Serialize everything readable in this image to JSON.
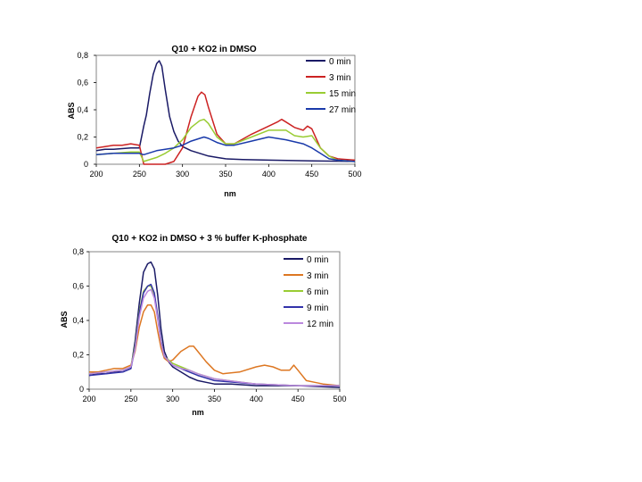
{
  "chart_data": [
    {
      "type": "line",
      "title": "Q10 + KO2 in DMSO",
      "xlabel": "nm",
      "ylabel": "ABS",
      "xlim": [
        200,
        500
      ],
      "ylim": [
        0,
        0.8
      ],
      "xticks": [
        "200",
        "250",
        "300",
        "350",
        "400",
        "450",
        "500"
      ],
      "yticks": [
        "0",
        "0,2",
        "0,4",
        "0,6",
        "0,8"
      ],
      "legend_position": "top-right",
      "series": [
        {
          "name": "0 min",
          "color": "#1a1a66",
          "x": [
            200,
            210,
            220,
            230,
            240,
            250,
            255,
            258,
            262,
            266,
            270,
            273,
            276,
            280,
            285,
            290,
            295,
            300,
            310,
            320,
            330,
            340,
            350,
            370,
            400,
            450,
            500
          ],
          "y": [
            0.1,
            0.11,
            0.11,
            0.115,
            0.12,
            0.12,
            0.28,
            0.36,
            0.52,
            0.66,
            0.74,
            0.76,
            0.72,
            0.55,
            0.35,
            0.24,
            0.17,
            0.13,
            0.1,
            0.08,
            0.06,
            0.05,
            0.04,
            0.035,
            0.03,
            0.025,
            0.02
          ]
        },
        {
          "name": "3 min",
          "color": "#cc2222",
          "x": [
            200,
            210,
            220,
            230,
            240,
            250,
            255,
            262,
            270,
            280,
            290,
            300,
            310,
            318,
            322,
            326,
            330,
            340,
            350,
            360,
            380,
            400,
            410,
            415,
            420,
            430,
            440,
            445,
            450,
            460,
            470,
            480,
            500
          ],
          "y": [
            0.12,
            0.13,
            0.14,
            0.14,
            0.15,
            0.14,
            0.0,
            0.0,
            0.0,
            0.0,
            0.02,
            0.12,
            0.35,
            0.5,
            0.53,
            0.51,
            0.42,
            0.22,
            0.15,
            0.15,
            0.22,
            0.28,
            0.31,
            0.33,
            0.31,
            0.27,
            0.25,
            0.28,
            0.26,
            0.12,
            0.06,
            0.04,
            0.03
          ]
        },
        {
          "name": "15 min",
          "color": "#99cc33",
          "x": [
            200,
            220,
            240,
            250,
            255,
            260,
            270,
            280,
            290,
            300,
            310,
            320,
            325,
            330,
            340,
            350,
            360,
            380,
            400,
            420,
            430,
            440,
            450,
            460,
            470,
            480,
            500
          ],
          "y": [
            0.07,
            0.08,
            0.09,
            0.09,
            0.02,
            0.03,
            0.05,
            0.08,
            0.12,
            0.18,
            0.27,
            0.32,
            0.33,
            0.3,
            0.2,
            0.15,
            0.15,
            0.2,
            0.25,
            0.25,
            0.21,
            0.2,
            0.21,
            0.12,
            0.06,
            0.03,
            0.02
          ]
        },
        {
          "name": "27 min",
          "color": "#1a3aaa",
          "x": [
            200,
            220,
            240,
            250,
            255,
            260,
            270,
            280,
            290,
            300,
            310,
            320,
            325,
            330,
            340,
            350,
            360,
            380,
            400,
            420,
            440,
            450,
            460,
            470,
            480,
            500
          ],
          "y": [
            0.07,
            0.08,
            0.08,
            0.08,
            0.07,
            0.08,
            0.1,
            0.11,
            0.12,
            0.14,
            0.17,
            0.19,
            0.2,
            0.19,
            0.16,
            0.14,
            0.14,
            0.17,
            0.2,
            0.18,
            0.15,
            0.12,
            0.08,
            0.04,
            0.03,
            0.02
          ]
        }
      ]
    },
    {
      "type": "line",
      "title": "Q10 + KO2 in DMSO + 3 % buffer K-phosphate",
      "xlabel": "nm",
      "ylabel": "ABS",
      "xlim": [
        200,
        500
      ],
      "ylim": [
        0,
        0.8
      ],
      "xticks": [
        "200",
        "250",
        "300",
        "350",
        "400",
        "450",
        "500"
      ],
      "yticks": [
        "0",
        "0,2",
        "0,4",
        "0,6",
        "0,8"
      ],
      "legend_position": "top-right",
      "series": [
        {
          "name": "0 min",
          "color": "#1a1a66",
          "x": [
            200,
            210,
            220,
            230,
            240,
            250,
            255,
            260,
            265,
            270,
            274,
            278,
            282,
            286,
            290,
            295,
            300,
            310,
            320,
            330,
            340,
            350,
            370,
            400,
            450,
            500
          ],
          "y": [
            0.08,
            0.09,
            0.09,
            0.1,
            0.1,
            0.12,
            0.28,
            0.5,
            0.68,
            0.73,
            0.74,
            0.7,
            0.55,
            0.35,
            0.22,
            0.16,
            0.13,
            0.1,
            0.07,
            0.05,
            0.04,
            0.03,
            0.03,
            0.02,
            0.02,
            0.01
          ]
        },
        {
          "name": "3 min",
          "color": "#dd7722",
          "x": [
            200,
            210,
            220,
            230,
            240,
            250,
            255,
            260,
            265,
            270,
            274,
            278,
            282,
            286,
            290,
            295,
            300,
            310,
            320,
            325,
            330,
            340,
            350,
            360,
            380,
            400,
            410,
            420,
            430,
            440,
            445,
            450,
            460,
            470,
            480,
            500
          ],
          "y": [
            0.1,
            0.1,
            0.11,
            0.12,
            0.12,
            0.14,
            0.22,
            0.36,
            0.45,
            0.49,
            0.49,
            0.45,
            0.34,
            0.24,
            0.18,
            0.16,
            0.17,
            0.22,
            0.25,
            0.25,
            0.22,
            0.16,
            0.11,
            0.09,
            0.1,
            0.13,
            0.14,
            0.13,
            0.11,
            0.11,
            0.14,
            0.11,
            0.05,
            0.04,
            0.03,
            0.02
          ]
        },
        {
          "name": "6 min",
          "color": "#99cc33",
          "x": [
            200,
            220,
            240,
            250,
            255,
            260,
            265,
            270,
            274,
            278,
            282,
            286,
            290,
            300,
            310,
            320,
            330,
            350,
            400,
            450,
            500
          ],
          "y": [
            0.09,
            0.1,
            0.11,
            0.13,
            0.25,
            0.45,
            0.57,
            0.6,
            0.6,
            0.55,
            0.42,
            0.28,
            0.19,
            0.15,
            0.13,
            0.11,
            0.09,
            0.06,
            0.03,
            0.02,
            0.02
          ]
        },
        {
          "name": "9 min",
          "color": "#3333aa",
          "x": [
            200,
            220,
            240,
            250,
            255,
            260,
            265,
            270,
            274,
            278,
            282,
            286,
            290,
            300,
            310,
            320,
            330,
            350,
            400,
            450,
            500
          ],
          "y": [
            0.08,
            0.09,
            0.1,
            0.12,
            0.24,
            0.44,
            0.56,
            0.6,
            0.61,
            0.56,
            0.43,
            0.28,
            0.19,
            0.14,
            0.12,
            0.1,
            0.08,
            0.05,
            0.03,
            0.02,
            0.02
          ]
        },
        {
          "name": "12 min",
          "color": "#bb88dd",
          "x": [
            200,
            220,
            240,
            250,
            255,
            260,
            265,
            270,
            274,
            278,
            282,
            286,
            290,
            300,
            310,
            320,
            330,
            350,
            400,
            450,
            500
          ],
          "y": [
            0.09,
            0.1,
            0.11,
            0.13,
            0.23,
            0.42,
            0.53,
            0.57,
            0.58,
            0.53,
            0.41,
            0.27,
            0.19,
            0.14,
            0.12,
            0.11,
            0.09,
            0.06,
            0.03,
            0.02,
            0.02
          ]
        }
      ]
    }
  ]
}
